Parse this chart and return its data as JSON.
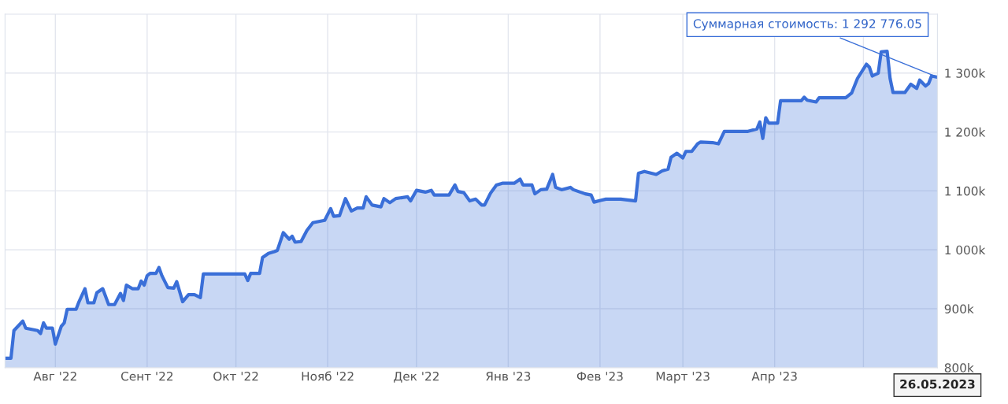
{
  "chart_data": {
    "type": "area",
    "x": [
      "2022-07-15",
      "2022-07-17",
      "2022-07-18",
      "2022-07-21",
      "2022-07-22",
      "2022-07-26",
      "2022-07-27",
      "2022-07-28",
      "2022-07-29",
      "2022-07-31",
      "2022-08-01",
      "2022-08-03",
      "2022-08-04",
      "2022-08-05",
      "2022-08-08",
      "2022-08-09",
      "2022-08-11",
      "2022-08-12",
      "2022-08-14",
      "2022-08-15",
      "2022-08-17",
      "2022-08-19",
      "2022-08-21",
      "2022-08-23",
      "2022-08-24",
      "2022-08-25",
      "2022-08-27",
      "2022-08-29",
      "2022-08-30",
      "2022-08-31",
      "2022-09-01",
      "2022-09-02",
      "2022-09-04",
      "2022-09-05",
      "2022-09-06",
      "2022-09-08",
      "2022-09-10",
      "2022-09-11",
      "2022-09-13",
      "2022-09-15",
      "2022-09-17",
      "2022-09-19",
      "2022-09-20",
      "2022-09-25",
      "2022-10-01",
      "2022-10-04",
      "2022-10-05",
      "2022-10-06",
      "2022-10-09",
      "2022-10-10",
      "2022-10-12",
      "2022-10-14",
      "2022-10-15",
      "2022-10-17",
      "2022-10-19",
      "2022-10-20",
      "2022-10-21",
      "2022-10-23",
      "2022-10-25",
      "2022-10-27",
      "2022-10-31",
      "2022-11-02",
      "2022-11-03",
      "2022-11-05",
      "2022-11-07",
      "2022-11-09",
      "2022-11-11",
      "2022-11-13",
      "2022-11-14",
      "2022-11-16",
      "2022-11-19",
      "2022-11-20",
      "2022-11-22",
      "2022-11-24",
      "2022-11-28",
      "2022-11-29",
      "2022-12-01",
      "2022-12-04",
      "2022-12-06",
      "2022-12-07",
      "2022-12-12",
      "2022-12-14",
      "2022-12-15",
      "2022-12-17",
      "2022-12-19",
      "2022-12-21",
      "2022-12-23",
      "2022-12-24",
      "2022-12-26",
      "2022-12-28",
      "2022-12-30",
      "2023-01-03",
      "2023-01-05",
      "2023-01-06",
      "2023-01-09",
      "2023-01-10",
      "2023-01-12",
      "2023-01-14",
      "2023-01-16",
      "2023-01-17",
      "2023-01-19",
      "2023-01-22",
      "2023-01-23",
      "2023-01-27",
      "2023-01-29",
      "2023-01-30",
      "2023-02-03",
      "2023-02-08",
      "2023-02-13",
      "2023-02-14",
      "2023-02-16",
      "2023-02-20",
      "2023-02-22",
      "2023-02-24",
      "2023-02-25",
      "2023-02-27",
      "2023-03-01",
      "2023-03-02",
      "2023-03-04",
      "2023-03-06",
      "2023-03-07",
      "2023-03-11",
      "2023-03-13",
      "2023-03-15",
      "2023-03-18",
      "2023-03-23",
      "2023-03-26",
      "2023-03-27",
      "2023-03-28",
      "2023-03-29",
      "2023-03-30",
      "2023-04-02",
      "2023-04-03",
      "2023-04-06",
      "2023-04-10",
      "2023-04-11",
      "2023-04-12",
      "2023-04-15",
      "2023-04-16",
      "2023-04-25",
      "2023-04-27",
      "2023-04-29",
      "2023-05-02",
      "2023-05-03",
      "2023-05-04",
      "2023-05-06",
      "2023-05-07",
      "2023-05-09",
      "2023-05-10",
      "2023-05-11",
      "2023-05-15",
      "2023-05-17",
      "2023-05-19",
      "2023-05-20",
      "2023-05-22",
      "2023-05-23",
      "2023-05-24",
      "2023-05-26"
    ],
    "series": [
      {
        "color": "#3a6fd8",
        "values": [
          816,
          816,
          863,
          879,
          867,
          863,
          858,
          876,
          867,
          867,
          840,
          870,
          876,
          899,
          899,
          912,
          934,
          910,
          910,
          927,
          934,
          907,
          907,
          926,
          914,
          940,
          934,
          934,
          947,
          940,
          956,
          960,
          960,
          970,
          956,
          936,
          935,
          946,
          912,
          924,
          924,
          919,
          959,
          959,
          959,
          959,
          948,
          960,
          960,
          987,
          994,
          997,
          999,
          1029,
          1018,
          1023,
          1013,
          1014,
          1033,
          1046,
          1050,
          1070,
          1057,
          1058,
          1087,
          1066,
          1071,
          1071,
          1090,
          1076,
          1073,
          1087,
          1080,
          1087,
          1090,
          1083,
          1101,
          1098,
          1101,
          1093,
          1093,
          1110,
          1099,
          1097,
          1083,
          1086,
          1076,
          1076,
          1096,
          1110,
          1113,
          1113,
          1120,
          1110,
          1110,
          1095,
          1102,
          1103,
          1128,
          1106,
          1102,
          1106,
          1102,
          1095,
          1093,
          1081,
          1086,
          1086,
          1083,
          1130,
          1133,
          1128,
          1134,
          1137,
          1157,
          1164,
          1156,
          1167,
          1167,
          1180,
          1183,
          1182,
          1180,
          1201,
          1201,
          1201,
          1205,
          1217,
          1189,
          1224,
          1215,
          1215,
          1253,
          1253,
          1253,
          1259,
          1254,
          1251,
          1258,
          1258,
          1266,
          1291,
          1315,
          1310,
          1295,
          1300,
          1336,
          1337,
          1291,
          1267,
          1267,
          1281,
          1274,
          1288,
          1278,
          1282,
          1295,
          1293
        ]
      }
    ],
    "xlim": [
      "2022-07-15",
      "2023-05-26"
    ],
    "xticks": [
      {
        "value": "2022-08-01",
        "label": "Авг '22"
      },
      {
        "value": "2022-09-01",
        "label": "Сент '22"
      },
      {
        "value": "2022-10-01",
        "label": "Окт '22"
      },
      {
        "value": "2022-11-01",
        "label": "Нояб '22"
      },
      {
        "value": "2022-12-01",
        "label": "Дек '22"
      },
      {
        "value": "2023-01-01",
        "label": "Янв '23"
      },
      {
        "value": "2023-02-01",
        "label": "Фев '23"
      },
      {
        "value": "2023-03-01",
        "label": "Март '23"
      },
      {
        "value": "2023-04-01",
        "label": "Апр '23"
      },
      {
        "value": "2023-05-01",
        "label": null
      }
    ],
    "ylim": [
      800,
      1400
    ],
    "yticks": [
      {
        "value": 800,
        "label": "800k"
      },
      {
        "value": 900,
        "label": "900k"
      },
      {
        "value": 1000,
        "label": "1 000k"
      },
      {
        "value": 1100,
        "label": "1 100k"
      },
      {
        "value": 1200,
        "label": "1 200k"
      },
      {
        "value": 1300,
        "label": "1 300k"
      }
    ],
    "grid": true,
    "annotations": [
      {
        "text": "Суммарная стоимость: 1 292 776.05",
        "x": "2023-05-26",
        "y": 1293
      },
      "26.05.2023"
    ]
  }
}
